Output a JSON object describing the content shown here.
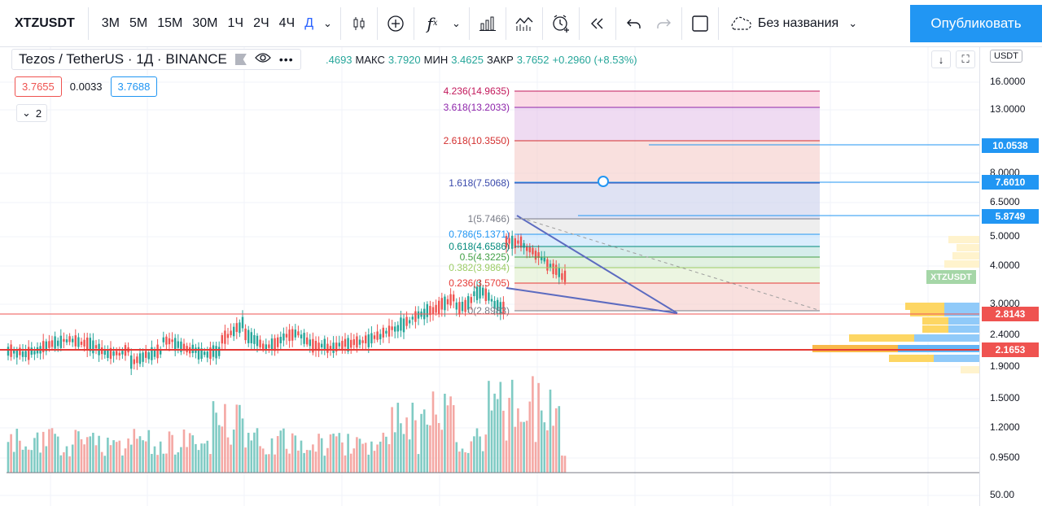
{
  "toolbar": {
    "symbol": "XTZUSDT",
    "intervals": [
      "3М",
      "5М",
      "15М",
      "30М",
      "1Ч",
      "2Ч",
      "4Ч",
      "Д"
    ],
    "active_interval": "Д",
    "fx_label": "f",
    "layout_name": "Без названия",
    "publish_label": "Опубликовать"
  },
  "legend": {
    "title": "Tezos / TetherUS · 1Д · BINANCE",
    "open_label": "",
    "open_value": ".4693",
    "high_label": "МАКС",
    "high_value": "3.7920",
    "low_label": "МИН",
    "low_value": "3.4625",
    "close_label": "ЗАКР",
    "close_value": "3.7652",
    "change": "+0.2960 (+8.53%)",
    "sell_price": "3.7655",
    "spread": "0.0033",
    "buy_price": "3.7688",
    "indicators_count": "2",
    "currency": "USDT"
  },
  "axis": {
    "ticks": [
      "16.0000",
      "13.0000",
      "8.0000",
      "6.5000",
      "5.0000",
      "4.0000",
      "3.0000",
      "2.4000",
      "1.9000",
      "1.5000",
      "1.2000",
      "0.9500",
      "50.00"
    ],
    "tags": [
      {
        "label": "10.0538",
        "color": "#2196f3"
      },
      {
        "label": "7.6010",
        "color": "#2196f3"
      },
      {
        "label": "5.8749",
        "color": "#2196f3"
      },
      {
        "label": "2.8143",
        "color": "#ef5350"
      },
      {
        "label": "2.1653",
        "color": "#ef5350"
      }
    ],
    "symbol_tag": "XTZUSDT"
  },
  "fib": [
    {
      "label": "4.236(14.9635)",
      "color": "#c2185b"
    },
    {
      "label": "3.618(13.2033)",
      "color": "#8e24aa"
    },
    {
      "label": "2.618(10.3550)",
      "color": "#d32f2f"
    },
    {
      "label": "1.618(7.5068)",
      "color": "#3949ab"
    },
    {
      "label": "1(5.7466)",
      "color": "#787b86"
    },
    {
      "label": "0.786(5.1371)",
      "color": "#2196f3"
    },
    {
      "label": "0.618(4.6586)",
      "color": "#00897b"
    },
    {
      "label": "0.5(4.3225)",
      "color": "#43a047"
    },
    {
      "label": "0.382(3.9864)",
      "color": "#9ccc65"
    },
    {
      "label": "0.236(3.5705)",
      "color": "#e53935"
    },
    {
      "label": "0(2.8983)",
      "color": "#787b86"
    }
  ],
  "colors": {
    "up": "#26a69a",
    "down": "#ef5350",
    "accent": "#2196f3"
  }
}
